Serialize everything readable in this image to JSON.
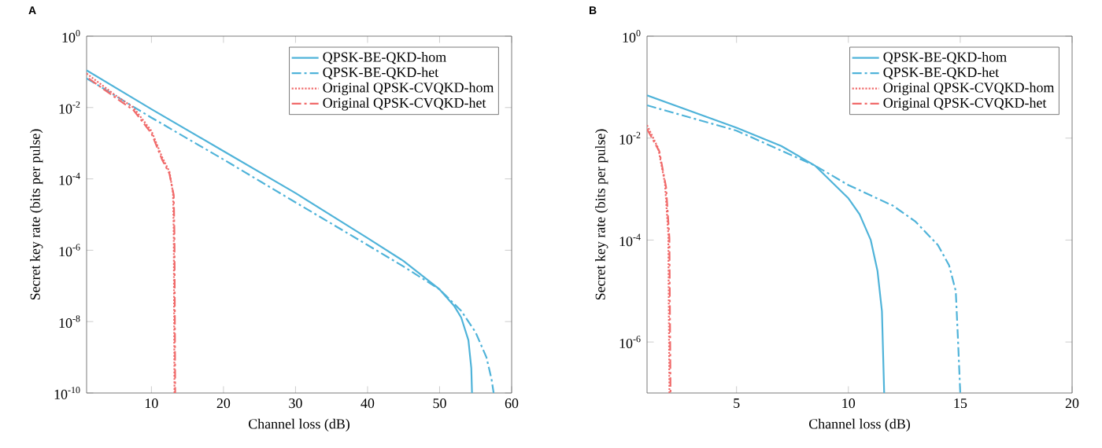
{
  "chart_data": [
    {
      "type": "line",
      "title": "A",
      "xlabel": "Channel loss (dB)",
      "ylabel": "Secret key rate (bits per pulse)",
      "log": "y",
      "legend": "top right",
      "xlim": [
        1,
        60
      ],
      "xticks": [
        10,
        20,
        30,
        40,
        50,
        60
      ],
      "ylim": [
        1e-10,
        1
      ],
      "yticks": [
        {
          "value": 1,
          "label": "10$^{0}$"
        },
        {
          "value": 0.01,
          "label": "10$^{-2}$"
        },
        {
          "value": 0.0001,
          "label": "10$^{-4}$"
        },
        {
          "value": 1e-06,
          "label": "10$^{-6}$"
        },
        {
          "value": 1e-08,
          "label": "10$^{-8}$"
        },
        {
          "value": 1e-10,
          "label": "10$^{-10}$"
        }
      ],
      "series": [
        {
          "name": "QPSK-BE-QKD-hom",
          "color": "#4fb3d9",
          "line_style": "solid",
          "x": [
            1,
            10,
            20,
            30,
            40,
            45,
            50,
            52,
            53,
            54,
            54.4,
            54.5
          ],
          "values": [
            0.11,
            0.009,
            0.0006,
            4e-05,
            2.2e-06,
            5e-07,
            8e-08,
            2.8e-08,
            1.3e-08,
            3e-09,
            5e-10,
            1e-10
          ]
        },
        {
          "name": "QPSK-BE-QKD-het",
          "color": "#4fb3d9",
          "line_style": "dashed",
          "x": [
            1,
            10,
            20,
            30,
            40,
            45,
            50,
            53,
            55,
            56.5,
            57.2,
            57.5
          ],
          "values": [
            0.066,
            0.0052,
            0.00035,
            2.2e-05,
            1.4e-06,
            3.5e-07,
            8e-08,
            2e-08,
            5e-09,
            1e-09,
            2.5e-10,
            1e-10
          ]
        },
        {
          "name": "Original QPSK-CVQKD-hom",
          "color": "#f06a6a",
          "line_style": "dotted",
          "x": [
            1,
            5,
            7.5,
            10,
            11.5,
            12.5,
            13,
            13.1,
            13.2
          ],
          "values": [
            0.09,
            0.022,
            0.01,
            0.0022,
            0.0004,
            0.00016,
            4e-05,
            2.5e-06,
            1e-10
          ]
        },
        {
          "name": "Original QPSK-CVQKD-het",
          "color": "#f06a6a",
          "line_style": "dashed",
          "x": [
            1.3,
            5,
            7.5,
            10,
            11.5,
            12.5,
            13.1,
            13.2,
            13.3
          ],
          "values": [
            0.065,
            0.019,
            0.0085,
            0.0019,
            0.00034,
            0.00014,
            3.5e-05,
            2.2e-06,
            1e-10
          ]
        }
      ]
    },
    {
      "type": "line",
      "title": "B",
      "xlabel": "Channel loss (dB)",
      "ylabel": "Secret key rate (bits per pulse)",
      "log": "y",
      "legend": "top right",
      "xlim": [
        1,
        20
      ],
      "xticks": [
        5,
        10,
        15,
        20
      ],
      "ylim": [
        1e-07,
        1
      ],
      "yticks": [
        {
          "value": 1,
          "label": "10$^{0}$"
        },
        {
          "value": 0.01,
          "label": "10$^{-2}$"
        },
        {
          "value": 0.0001,
          "label": "10$^{-4}$"
        },
        {
          "value": 1e-06,
          "label": "10$^{-6}$"
        }
      ],
      "series": [
        {
          "name": "QPSK-BE-QKD-hom",
          "color": "#4fb3d9",
          "line_style": "solid",
          "x": [
            1,
            5,
            7,
            8.5,
            10,
            10.5,
            11,
            11.3,
            11.5,
            11.6
          ],
          "values": [
            0.069,
            0.016,
            0.007,
            0.0029,
            0.00066,
            0.00032,
            0.0001,
            2.5e-05,
            4e-06,
            1e-07
          ]
        },
        {
          "name": "QPSK-BE-QKD-het",
          "color": "#4fb3d9",
          "line_style": "dashed",
          "x": [
            1,
            5,
            8.5,
            10,
            12,
            13,
            14,
            14.5,
            14.8,
            14.9,
            15
          ],
          "values": [
            0.044,
            0.014,
            0.0029,
            0.0012,
            0.00047,
            0.00023,
            8e-05,
            3.2e-05,
            1e-05,
            1.1e-06,
            1e-07
          ]
        },
        {
          "name": "Original QPSK-CVQKD-hom",
          "color": "#f06a6a",
          "line_style": "dotted",
          "x": [
            1,
            1.5,
            1.8,
            1.95,
            2
          ],
          "values": [
            0.018,
            0.0063,
            0.0013,
            0.00013,
            1e-07
          ]
        },
        {
          "name": "Original QPSK-CVQKD-het",
          "color": "#f06a6a",
          "line_style": "dashed",
          "x": [
            1,
            1.55,
            1.85,
            2.0,
            2.05
          ],
          "values": [
            0.015,
            0.0055,
            0.0011,
            0.00011,
            1e-07
          ]
        }
      ]
    }
  ]
}
